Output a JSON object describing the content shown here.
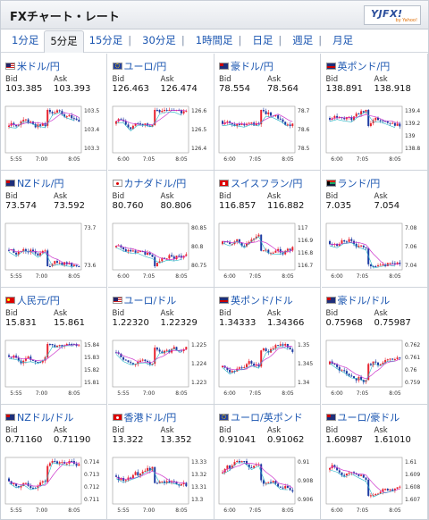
{
  "header": {
    "title": "FXチャート・レート",
    "logo_text": "YJFX!",
    "logo_sub": "by Yahoo!"
  },
  "tabs": [
    {
      "label": "1分足",
      "active": false
    },
    {
      "label": "5分足",
      "active": true
    },
    {
      "label": "15分足",
      "active": false
    },
    {
      "label": "30分足",
      "active": false
    },
    {
      "label": "1時間足",
      "active": false
    },
    {
      "label": "日足",
      "active": false
    },
    {
      "label": "週足",
      "active": false
    },
    {
      "label": "月足",
      "active": false
    }
  ],
  "labels": {
    "bid": "Bid",
    "ask": "Ask"
  },
  "colors": {
    "link": "#1a55b0",
    "candle_up": "#e8232f",
    "candle_down": "#1e3ca3",
    "ma_line": "#cc33cc",
    "line": "#27b7c6"
  },
  "pairs": [
    {
      "name": "米ドル/円",
      "flag": "us",
      "bid": "103.385",
      "ask": "103.393",
      "yticks": [
        "103.5",
        "103.4",
        "103.3"
      ],
      "xticks": [
        "5:55",
        "7:00",
        "8:05"
      ],
      "seed": 1
    },
    {
      "name": "ユーロ/円",
      "flag": "eu",
      "bid": "126.463",
      "ask": "126.474",
      "yticks": [
        "126.6",
        "126.5",
        "126.4"
      ],
      "xticks": [
        "6:00",
        "7:05",
        "8:05"
      ],
      "seed": 2
    },
    {
      "name": "豪ドル/円",
      "flag": "au",
      "bid": "78.554",
      "ask": "78.564",
      "yticks": [
        "78.7",
        "78.6",
        "78.5"
      ],
      "xticks": [
        "6:00",
        "7:05",
        "8:05"
      ],
      "seed": 3
    },
    {
      "name": "英ポンド/円",
      "flag": "gb",
      "bid": "138.891",
      "ask": "138.918",
      "yticks": [
        "139.4",
        "139.2",
        "139",
        "138.8"
      ],
      "xticks": [
        "6:00",
        "7:05",
        "8:05"
      ],
      "seed": 4
    },
    {
      "name": "NZドル/円",
      "flag": "au",
      "bid": "73.574",
      "ask": "73.592",
      "yticks": [
        "73.7",
        "73.6"
      ],
      "xticks": [
        "5:55",
        "7:00",
        "8:05"
      ],
      "seed": 5
    },
    {
      "name": "カナダドル/円",
      "flag": "ca",
      "bid": "80.760",
      "ask": "80.806",
      "yticks": [
        "80.85",
        "80.8",
        "80.75"
      ],
      "xticks": [
        "6:00",
        "7:05",
        "8:05"
      ],
      "seed": 6
    },
    {
      "name": "スイスフラン/円",
      "flag": "ch",
      "bid": "116.857",
      "ask": "116.882",
      "yticks": [
        "117",
        "116.9",
        "116.8",
        "116.7"
      ],
      "xticks": [
        "6:00",
        "7:05",
        "8:05"
      ],
      "seed": 7
    },
    {
      "name": "ランド/円",
      "flag": "za",
      "bid": "7.035",
      "ask": "7.054",
      "yticks": [
        "7.08",
        "7.06",
        "7.04"
      ],
      "xticks": [
        "6:00",
        "7:05",
        "8:05"
      ],
      "seed": 8
    },
    {
      "name": "人民元/円",
      "flag": "cn",
      "bid": "15.831",
      "ask": "15.861",
      "yticks": [
        "15.84",
        "15.83",
        "15.82",
        "15.81"
      ],
      "xticks": [
        "5:55",
        "7:00",
        "8:05"
      ],
      "seed": 9
    },
    {
      "name": "ユーロ/ドル",
      "flag": "us",
      "bid": "1.22320",
      "ask": "1.22329",
      "yticks": [
        "1.225",
        "1.224",
        "1.223"
      ],
      "xticks": [
        "5:55",
        "7:00",
        "8:05"
      ],
      "seed": 10
    },
    {
      "name": "英ポンド/ドル",
      "flag": "gb",
      "bid": "1.34333",
      "ask": "1.34366",
      "yticks": [
        "1.35",
        "1.345",
        "1.34"
      ],
      "xticks": [
        "6:00",
        "7:05",
        "8:05"
      ],
      "seed": 11
    },
    {
      "name": "豪ドル/ドル",
      "flag": "au",
      "bid": "0.75968",
      "ask": "0.75987",
      "yticks": [
        "0.762",
        "0.761",
        "0.76",
        "0.759"
      ],
      "xticks": [
        "6:00",
        "7:05",
        "8:05"
      ],
      "seed": 12
    },
    {
      "name": "NZドル/ドル",
      "flag": "au",
      "bid": "0.71160",
      "ask": "0.71190",
      "yticks": [
        "0.714",
        "0.713",
        "0.712",
        "0.711"
      ],
      "xticks": [
        "5:55",
        "7:00",
        "8:05"
      ],
      "seed": 13
    },
    {
      "name": "香港ドル/円",
      "flag": "hk",
      "bid": "13.322",
      "ask": "13.352",
      "yticks": [
        "13.33",
        "13.32",
        "13.31",
        "13.3"
      ],
      "xticks": [
        "5:55",
        "7:00",
        "8:05"
      ],
      "seed": 14
    },
    {
      "name": "ユーロ/英ポンド",
      "flag": "eu",
      "bid": "0.91041",
      "ask": "0.91062",
      "yticks": [
        "0.91",
        "0.908",
        "0.906"
      ],
      "xticks": [
        "6:00",
        "7:05",
        "8:05"
      ],
      "seed": 15
    },
    {
      "name": "ユーロ/豪ドル",
      "flag": "au",
      "bid": "1.60987",
      "ask": "1.61010",
      "yticks": [
        "1.61",
        "1.609",
        "1.608",
        "1.607"
      ],
      "xticks": [
        "6:00",
        "7:05",
        "8:05"
      ],
      "seed": 16
    }
  ]
}
